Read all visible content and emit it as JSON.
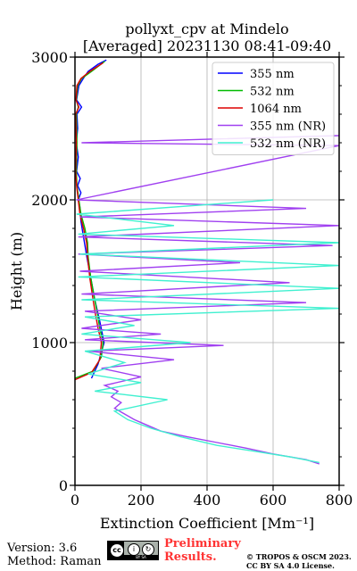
{
  "chart_data": {
    "type": "line",
    "title_line1": "pollyxt_cpv at Mindelo",
    "title_line2": "[Averaged] 20231130 08:41-09:40",
    "xlabel": "Extinction Coefficient [Mm⁻¹]",
    "ylabel": "Height (m)",
    "xlim": [
      0,
      800
    ],
    "ylim": [
      0,
      3000
    ],
    "xticks": [
      0,
      200,
      400,
      600,
      800
    ],
    "yticks": [
      0,
      1000,
      2000,
      3000
    ],
    "grid": true,
    "legend_position": "top-right",
    "series": [
      {
        "name": "355 nm",
        "color": "#0000ff",
        "points": [
          [
            50,
            750
          ],
          [
            70,
            850
          ],
          [
            88,
            1000
          ],
          [
            75,
            1150
          ],
          [
            60,
            1300
          ],
          [
            48,
            1450
          ],
          [
            36,
            1600
          ],
          [
            25,
            1750
          ],
          [
            18,
            1850
          ],
          [
            15,
            1950
          ],
          [
            10,
            2000
          ],
          [
            18,
            2050
          ],
          [
            8,
            2100
          ],
          [
            16,
            2150
          ],
          [
            5,
            2200
          ],
          [
            10,
            2300
          ],
          [
            4,
            2400
          ],
          [
            8,
            2500
          ],
          [
            6,
            2600
          ],
          [
            20,
            2650
          ],
          [
            5,
            2700
          ],
          [
            12,
            2800
          ],
          [
            25,
            2850
          ],
          [
            40,
            2900
          ],
          [
            70,
            2950
          ],
          [
            95,
            2980
          ]
        ]
      },
      {
        "name": "532 nm",
        "color": "#00bb00",
        "points": [
          [
            0,
            750
          ],
          [
            55,
            800
          ],
          [
            80,
            900
          ],
          [
            85,
            1000
          ],
          [
            75,
            1100
          ],
          [
            68,
            1200
          ],
          [
            60,
            1300
          ],
          [
            48,
            1450
          ],
          [
            40,
            1600
          ],
          [
            38,
            1700
          ],
          [
            30,
            1800
          ],
          [
            18,
            1900
          ],
          [
            12,
            2000
          ],
          [
            6,
            2100
          ],
          [
            4,
            2200
          ],
          [
            6,
            2400
          ],
          [
            4,
            2600
          ],
          [
            10,
            2650
          ],
          [
            4,
            2700
          ],
          [
            8,
            2800
          ],
          [
            20,
            2850
          ],
          [
            50,
            2900
          ],
          [
            90,
            2970
          ]
        ]
      },
      {
        "name": "1064 nm",
        "color": "#dd0000",
        "points": [
          [
            0,
            740
          ],
          [
            50,
            790
          ],
          [
            75,
            880
          ],
          [
            80,
            1000
          ],
          [
            70,
            1100
          ],
          [
            62,
            1200
          ],
          [
            55,
            1300
          ],
          [
            45,
            1450
          ],
          [
            38,
            1600
          ],
          [
            35,
            1700
          ],
          [
            26,
            1800
          ],
          [
            15,
            1900
          ],
          [
            10,
            2000
          ],
          [
            5,
            2100
          ],
          [
            2,
            2200
          ],
          [
            4,
            2400
          ],
          [
            2,
            2600
          ],
          [
            12,
            2650
          ],
          [
            3,
            2700
          ],
          [
            6,
            2800
          ],
          [
            18,
            2850
          ],
          [
            45,
            2900
          ],
          [
            85,
            2960
          ]
        ]
      },
      {
        "name": "355 nm (NR)",
        "color": "#a040f0",
        "points": [
          [
            740,
            150
          ],
          [
            700,
            180
          ],
          [
            600,
            220
          ],
          [
            520,
            260
          ],
          [
            430,
            300
          ],
          [
            340,
            340
          ],
          [
            260,
            380
          ],
          [
            220,
            420
          ],
          [
            180,
            460
          ],
          [
            150,
            500
          ],
          [
            120,
            540
          ],
          [
            140,
            580
          ],
          [
            110,
            620
          ],
          [
            130,
            660
          ],
          [
            90,
            700
          ],
          [
            200,
            760
          ],
          [
            80,
            820
          ],
          [
            300,
            880
          ],
          [
            40,
            940
          ],
          [
            450,
            980
          ],
          [
            30,
            1020
          ],
          [
            260,
            1060
          ],
          [
            20,
            1100
          ],
          [
            200,
            1160
          ],
          [
            30,
            1220
          ],
          [
            700,
            1280
          ],
          [
            20,
            1340
          ],
          [
            650,
            1420
          ],
          [
            15,
            1500
          ],
          [
            500,
            1560
          ],
          [
            10,
            1620
          ],
          [
            780,
            1680
          ],
          [
            10,
            1740
          ],
          [
            800,
            1820
          ],
          [
            15,
            1880
          ],
          [
            700,
            1940
          ],
          [
            5,
            2000
          ],
          [
            800,
            2380
          ],
          [
            20,
            2400
          ],
          [
            800,
            2450
          ]
        ]
      },
      {
        "name": "532 nm (NR)",
        "color": "#40f0d0",
        "points": [
          [
            740,
            160
          ],
          [
            650,
            200
          ],
          [
            540,
            240
          ],
          [
            430,
            280
          ],
          [
            320,
            340
          ],
          [
            230,
            400
          ],
          [
            160,
            460
          ],
          [
            120,
            520
          ],
          [
            280,
            600
          ],
          [
            60,
            660
          ],
          [
            200,
            720
          ],
          [
            40,
            780
          ],
          [
            150,
            860
          ],
          [
            30,
            940
          ],
          [
            350,
            1000
          ],
          [
            20,
            1060
          ],
          [
            180,
            1120
          ],
          [
            30,
            1180
          ],
          [
            800,
            1240
          ],
          [
            20,
            1300
          ],
          [
            800,
            1380
          ],
          [
            10,
            1460
          ],
          [
            800,
            1540
          ],
          [
            15,
            1620
          ],
          [
            800,
            1700
          ],
          [
            10,
            1760
          ],
          [
            300,
            1820
          ],
          [
            5,
            1900
          ],
          [
            600,
            2000
          ]
        ]
      }
    ]
  },
  "footer": {
    "version": "Version: 3.6",
    "method": "Method: Raman",
    "preliminary_line1": "Preliminary",
    "preliminary_line2": "Results.",
    "copyright_line1": "© TROPOS & OSCM 2023.",
    "copyright_line2": "CC BY SA 4.0 License.",
    "badge_text": "BY SA"
  }
}
